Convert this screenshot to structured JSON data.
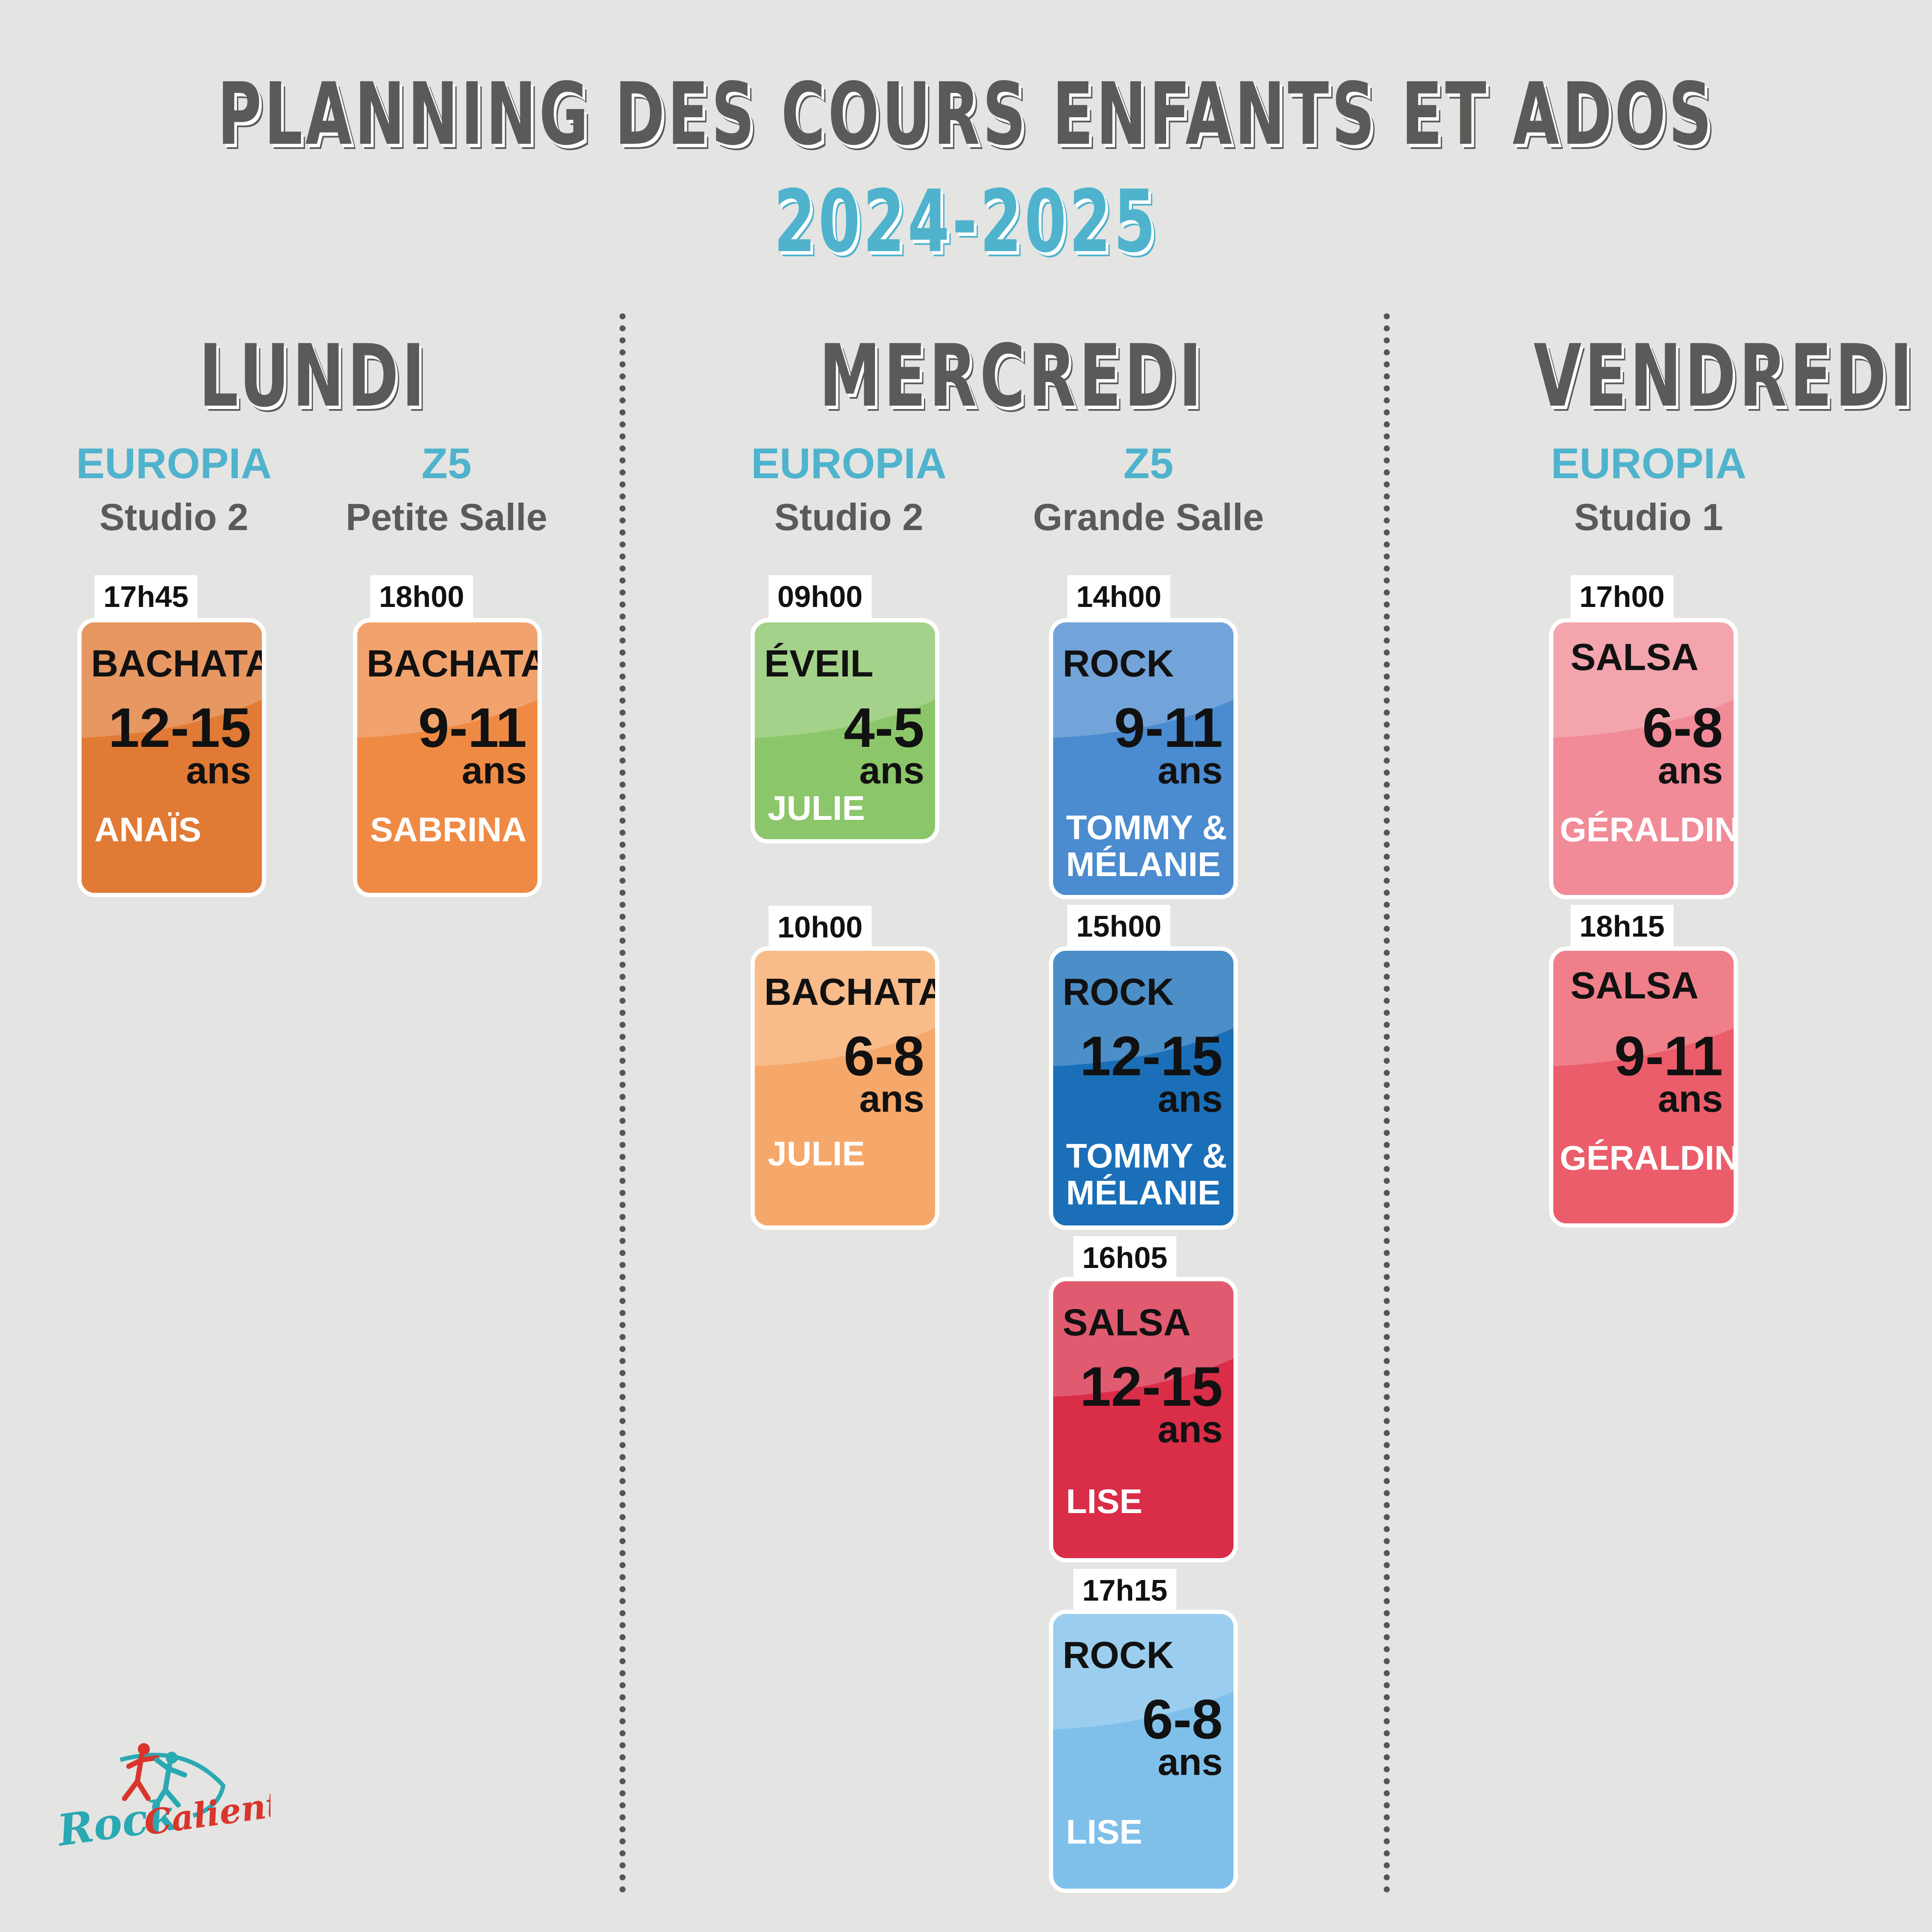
{
  "header": {
    "title": "PLANNING DES COURS ENFANTS ET ADOS",
    "subtitle": "2024-2025"
  },
  "days": [
    {
      "name": "LUNDI",
      "venues": [
        {
          "name": "EUROPIA",
          "room": "Studio 2",
          "classes": [
            {
              "time": "17h45",
              "dance": "BACHATA",
              "age": "12-15",
              "unit": "ans",
              "teacher": "ANAÏS",
              "color": "#e07a35"
            }
          ]
        },
        {
          "name": "Z5",
          "room": "Petite Salle",
          "classes": [
            {
              "time": "18h00",
              "dance": "BACHATA",
              "age": "9-11",
              "unit": "ans",
              "teacher": "SABRINA",
              "color": "#ef8a45"
            }
          ]
        }
      ]
    },
    {
      "name": "MERCREDI",
      "venues": [
        {
          "name": "EUROPIA",
          "room": "Studio 2",
          "classes": [
            {
              "time": "09h00",
              "dance": "ÉVEIL",
              "age": "4-5",
              "unit": "ans",
              "teacher": "JULIE",
              "color": "#8cc66a"
            },
            {
              "time": "10h00",
              "dance": "BACHATA",
              "age": "6-8",
              "unit": "ans",
              "teacher": "JULIE",
              "color": "#f6a86a"
            }
          ]
        },
        {
          "name": "Z5",
          "room": "Grande Salle",
          "classes": [
            {
              "time": "14h00",
              "dance": "ROCK",
              "age": "9-11",
              "unit": "ans",
              "teacher": "TOMMY & MÉLANIE",
              "color": "#4b8bcf"
            },
            {
              "time": "15h00",
              "dance": "ROCK",
              "age": "12-15",
              "unit": "ans",
              "teacher": "TOMMY & MÉLANIE",
              "color": "#1a6fb8"
            },
            {
              "time": "16h05",
              "dance": "SALSA",
              "age": "12-15",
              "unit": "ans",
              "teacher": "LISE",
              "color": "#d92d48"
            },
            {
              "time": "17h15",
              "dance": "ROCK",
              "age": "6-8",
              "unit": "ans",
              "teacher": "LISE",
              "color": "#7fc0ea"
            }
          ]
        }
      ]
    },
    {
      "name": "VENDREDI",
      "venues": [
        {
          "name": "EUROPIA",
          "room": "Studio 1",
          "classes": [
            {
              "time": "17h00",
              "dance": "SALSA",
              "age": "6-8",
              "unit": "ans",
              "teacher": "GÉRALDINE",
              "color": "#f08b97"
            },
            {
              "time": "18h15",
              "dance": "SALSA",
              "age": "9-11",
              "unit": "ans",
              "teacher": "GÉRALDINE",
              "color": "#eb5d6a"
            }
          ]
        }
      ]
    }
  ],
  "logo": {
    "text": "Rock Caliente",
    "colors": [
      "#2aa9b3",
      "#d9352c"
    ]
  }
}
